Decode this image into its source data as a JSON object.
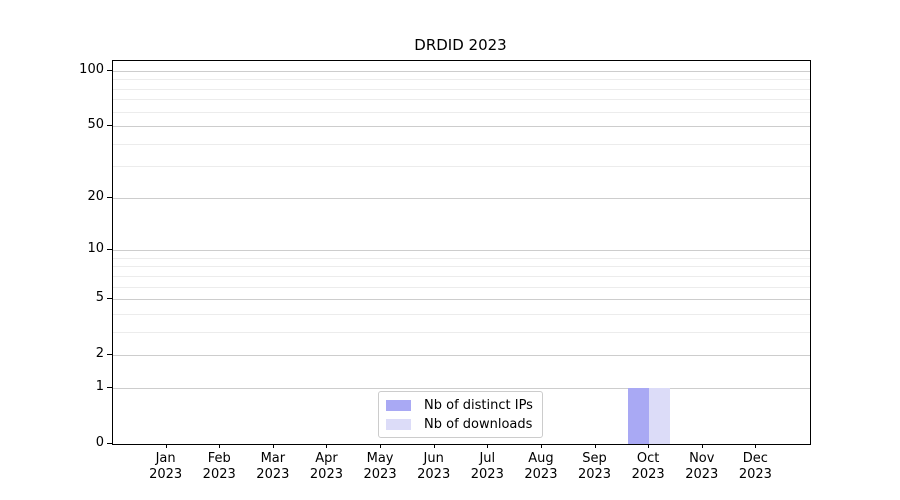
{
  "title": "DRDID 2023",
  "chart_data": {
    "type": "bar",
    "title": "DRDID 2023",
    "categories": [
      "Jan",
      "Feb",
      "Mar",
      "Apr",
      "May",
      "Jun",
      "Jul",
      "Aug",
      "Sep",
      "Oct",
      "Nov",
      "Dec"
    ],
    "category_year": "2023",
    "series": [
      {
        "name": "Nb of distinct IPs",
        "color": "#a9a9f4",
        "values": [
          0,
          0,
          0,
          0,
          0,
          0,
          0,
          0,
          0,
          1,
          0,
          0
        ]
      },
      {
        "name": "Nb of downloads",
        "color": "#dcdcf8",
        "values": [
          0,
          0,
          0,
          0,
          0,
          0,
          0,
          0,
          0,
          1,
          0,
          0
        ]
      }
    ],
    "xlabel": "",
    "ylabel": "",
    "yscale": "log1p",
    "ylim": [
      0,
      110
    ],
    "yticks": [
      0,
      1,
      2,
      5,
      10,
      20,
      50,
      100
    ],
    "minor_gridlines": [
      3,
      4,
      6,
      7,
      8,
      9,
      30,
      40,
      60,
      70,
      80,
      90
    ],
    "grid": "horizontal",
    "legend_position": "lower center",
    "colors": {
      "major_grid": "#cdcdcd",
      "minor_grid": "#ececec",
      "axis": "#000000",
      "background": "#ffffff"
    }
  }
}
